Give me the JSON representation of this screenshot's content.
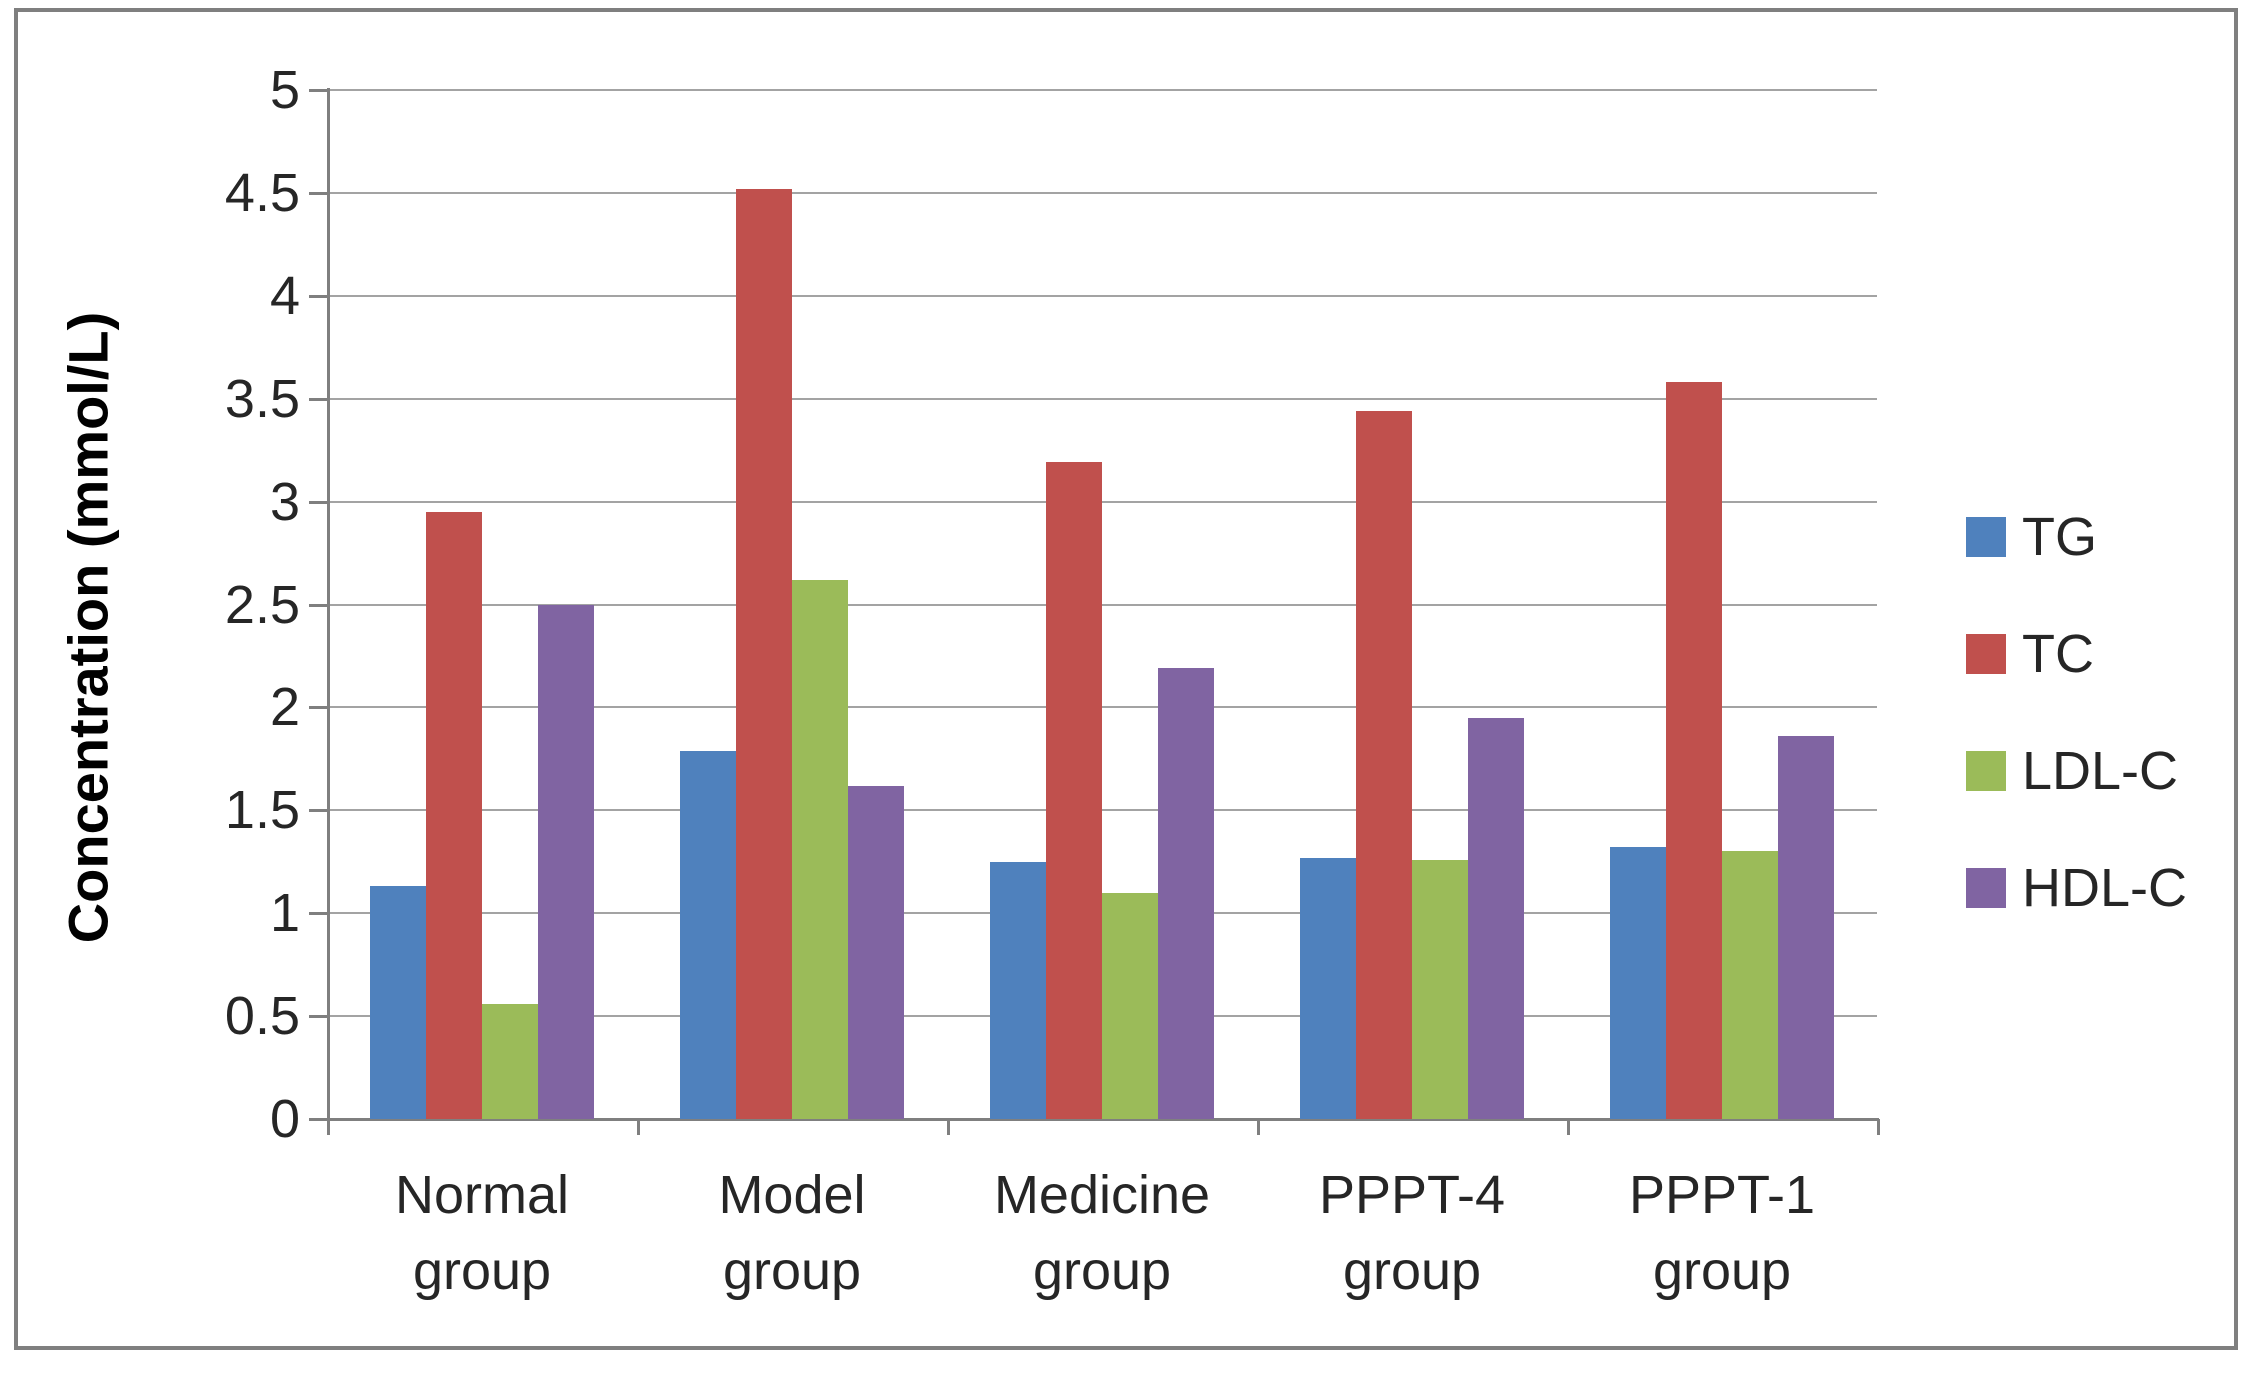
{
  "figure": {
    "background": "#ffffff",
    "border_color": "#7f7f7f",
    "axis_color": "#7f7f7f",
    "gridline_color": "#a3a3a3",
    "text_color": "#262626"
  },
  "chart_data": {
    "type": "bar",
    "title": "",
    "xlabel": "",
    "ylabel": "Concentration (mmol/L)",
    "ylim": [
      0,
      5
    ],
    "ytick_step": 0.5,
    "ytick_labels": [
      "0",
      "0.5",
      "1",
      "1.5",
      "2",
      "2.5",
      "3",
      "3.5",
      "4",
      "4.5",
      "5"
    ],
    "grid": true,
    "legend_position": "right",
    "categories": [
      "Normal group",
      "Model group",
      "Medicine group",
      "PPPT-4 group",
      "PPPT-1 group"
    ],
    "series": [
      {
        "name": "TG",
        "color": "#4F81BD",
        "values": [
          1.13,
          1.79,
          1.25,
          1.27,
          1.32
        ]
      },
      {
        "name": "TC",
        "color": "#C0504D",
        "values": [
          2.95,
          4.52,
          3.19,
          3.44,
          3.58
        ]
      },
      {
        "name": "LDL-C",
        "color": "#9BBB59",
        "values": [
          0.56,
          2.62,
          1.1,
          1.26,
          1.3
        ]
      },
      {
        "name": "HDL-C",
        "color": "#8064A2",
        "values": [
          2.5,
          1.62,
          2.19,
          1.95,
          1.86
        ]
      }
    ]
  }
}
